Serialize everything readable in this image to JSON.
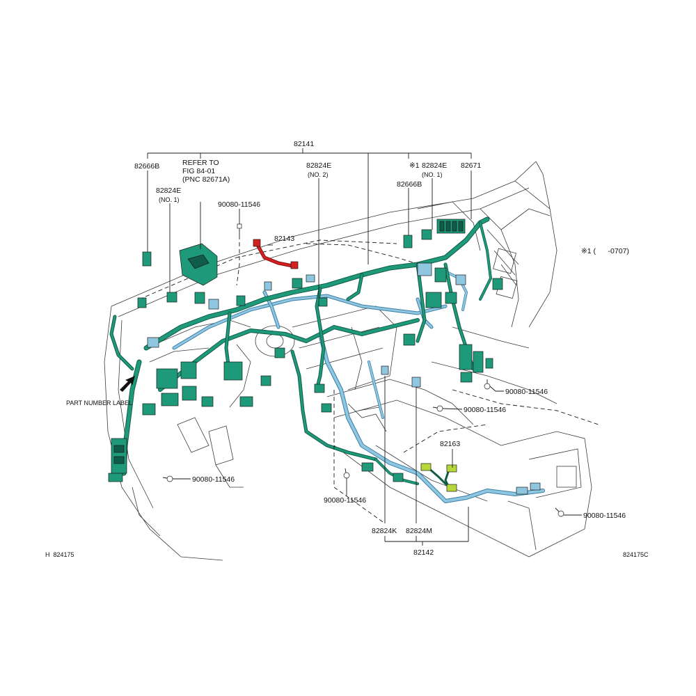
{
  "colors": {
    "main_harness": "#1e9a7a",
    "main_harness_dark": "#0f5c48",
    "floor_harness": "#8fc6e0",
    "floor_harness_dark": "#3a7fa6",
    "highlight_wire": "#d42020",
    "accent_connector": "#b6d83a",
    "linework": "#1a1a1a"
  },
  "labels": {
    "main_wire": "82141",
    "refer_to_1": "REFER TO",
    "refer_to_2": "FIG   84-01",
    "refer_to_3": "(PNC 82671A)",
    "clamp_left_top": "82666B",
    "clamp_left_mid": "82824E",
    "clamp_left_mid_note": "(NO. 1)",
    "bolt_top": "90080-11546",
    "red_wire": "82143",
    "center_clamp": "82824E",
    "center_clamp_note": "(NO. 2)",
    "right_note_marker": "※1",
    "right_clamp": "82824E",
    "right_clamp_note": "(NO. 1)",
    "right_block": "82671",
    "right_clamp_b": "82666B",
    "footnote": "※1 (      -0707)",
    "part_number_label": "PART NUMBER LABEL",
    "bolt_right_1": "90080-11546",
    "bolt_right_2": "90080-11546",
    "floor_connector": "82163",
    "bolt_bottom_left": "90080-11546",
    "bolt_bottom_center": "90080-11546",
    "bolt_bottom_right": "90080-11546",
    "clamp_k": "82824K",
    "clamp_m": "82824M",
    "floor_wire": "82142",
    "code_left": "H  824175",
    "code_right": "824175C"
  },
  "icons": [
    "arrow-pointer-icon",
    "bolt-icon",
    "connector-icon",
    "clamp-icon"
  ]
}
